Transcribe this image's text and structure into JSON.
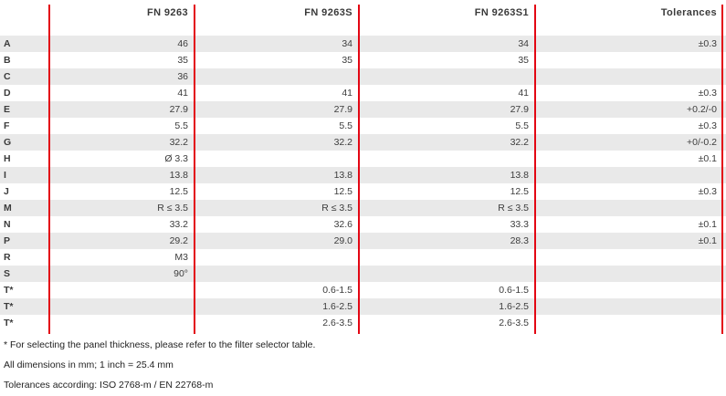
{
  "colors": {
    "divider_red": "#e30613",
    "stripe_gray": "#e9e9e9",
    "text": "#3c3c3c"
  },
  "table": {
    "columns": [
      "",
      "FN 9263",
      "FN 9263S",
      "FN 9263S1",
      "Tolerances"
    ],
    "rows": [
      {
        "label": "A",
        "fn9263": "46",
        "fn9263s": "34",
        "fn9263s1": "34",
        "tolerance": "±0.3"
      },
      {
        "label": "B",
        "fn9263": "35",
        "fn9263s": "35",
        "fn9263s1": "35",
        "tolerance": ""
      },
      {
        "label": "C",
        "fn9263": "36",
        "fn9263s": "",
        "fn9263s1": "",
        "tolerance": ""
      },
      {
        "label": "D",
        "fn9263": "41",
        "fn9263s": "41",
        "fn9263s1": "41",
        "tolerance": "±0.3"
      },
      {
        "label": "E",
        "fn9263": "27.9",
        "fn9263s": "27.9",
        "fn9263s1": "27.9",
        "tolerance": "+0.2/-0"
      },
      {
        "label": "F",
        "fn9263": "5.5",
        "fn9263s": "5.5",
        "fn9263s1": "5.5",
        "tolerance": "±0.3"
      },
      {
        "label": "G",
        "fn9263": "32.2",
        "fn9263s": "32.2",
        "fn9263s1": "32.2",
        "tolerance": "+0/-0.2"
      },
      {
        "label": "H",
        "fn9263": "Ø 3.3",
        "fn9263s": "",
        "fn9263s1": "",
        "tolerance": "±0.1"
      },
      {
        "label": "I",
        "fn9263": "13.8",
        "fn9263s": "13.8",
        "fn9263s1": "13.8",
        "tolerance": ""
      },
      {
        "label": "J",
        "fn9263": "12.5",
        "fn9263s": "12.5",
        "fn9263s1": "12.5",
        "tolerance": "±0.3"
      },
      {
        "label": "M",
        "fn9263": "R ≤ 3.5",
        "fn9263s": "R ≤ 3.5",
        "fn9263s1": "R ≤ 3.5",
        "tolerance": ""
      },
      {
        "label": "N",
        "fn9263": "33.2",
        "fn9263s": "32.6",
        "fn9263s1": "33.3",
        "tolerance": "±0.1"
      },
      {
        "label": "P",
        "fn9263": "29.2",
        "fn9263s": "29.0",
        "fn9263s1": "28.3",
        "tolerance": "±0.1"
      },
      {
        "label": "R",
        "fn9263": "M3",
        "fn9263s": "",
        "fn9263s1": "",
        "tolerance": ""
      },
      {
        "label": "S",
        "fn9263": "90°",
        "fn9263s": "",
        "fn9263s1": "",
        "tolerance": ""
      },
      {
        "label": "T*",
        "fn9263": "",
        "fn9263s": "0.6-1.5",
        "fn9263s1": "0.6-1.5",
        "tolerance": ""
      },
      {
        "label": "T*",
        "fn9263": "",
        "fn9263s": "1.6-2.5",
        "fn9263s1": "1.6-2.5",
        "tolerance": ""
      },
      {
        "label": "T*",
        "fn9263": "",
        "fn9263s": "2.6-3.5",
        "fn9263s1": "2.6-3.5",
        "tolerance": ""
      }
    ]
  },
  "footnotes": {
    "panel_thickness_note": "* For selecting the panel thickness, please refer to the filter selector table.",
    "dimensions_note": "All dimensions in mm; 1 inch = 25.4 mm",
    "tolerances_note": "Tolerances according: ISO 2768-m / EN 22768-m"
  }
}
